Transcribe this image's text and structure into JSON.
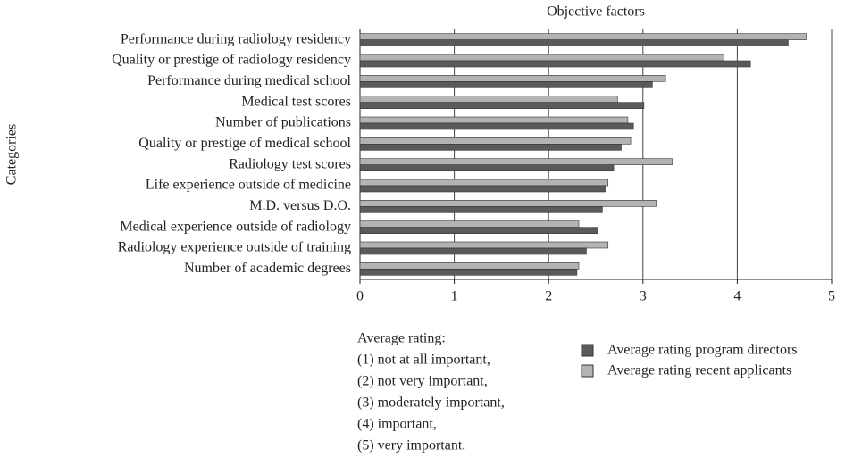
{
  "chart_data": {
    "type": "hbar",
    "title": "Objective factors",
    "y_label": "Categories",
    "categories": [
      "Performance during radiology residency",
      "Quality or prestige of radiology residency",
      "Performance during medical school",
      "Medical test scores",
      "Number of publications",
      "Quality or prestige of medical school",
      "Radiology test scores",
      "Life experience outside of medicine",
      "M.D. versus D.O.",
      "Medical experience outside of radiology",
      "Radiology experience outside of training",
      "Number of academic degrees"
    ],
    "series": [
      {
        "name": "Average rating program directors",
        "color": "#5a5a5a",
        "values": [
          4.54,
          4.14,
          3.1,
          3.01,
          2.9,
          2.77,
          2.69,
          2.6,
          2.57,
          2.52,
          2.4,
          2.3
        ]
      },
      {
        "name": "Average rating recent applicants",
        "color": "#b3b3b3",
        "values": [
          4.73,
          3.86,
          3.24,
          2.73,
          2.84,
          2.87,
          3.31,
          2.63,
          3.14,
          2.32,
          2.63,
          2.32
        ]
      }
    ],
    "xlim": [
      0,
      5
    ],
    "xticks": [
      0,
      1,
      2,
      3,
      4,
      5
    ],
    "grid": true,
    "note_title": "Average rating:",
    "note_lines": [
      "(1)  not at all important,",
      "(2)  not very important,",
      "(3)  moderately important,",
      "(4)  important,",
      "(5)  very important."
    ]
  }
}
